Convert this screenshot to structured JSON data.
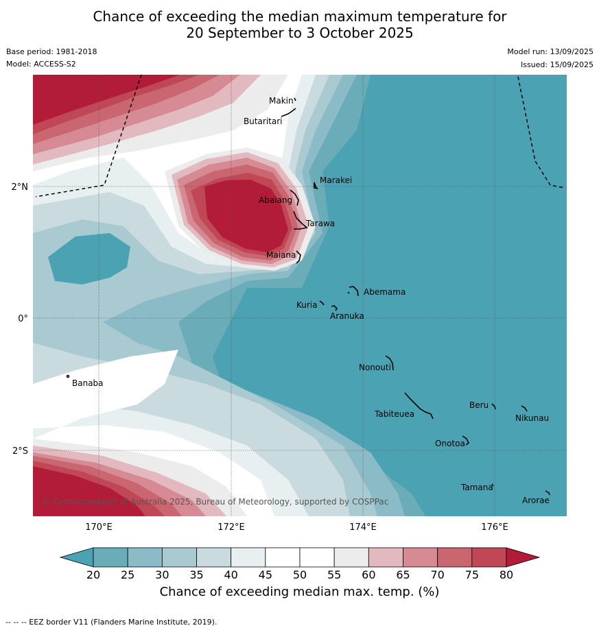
{
  "title_line1": "Chance of exceeding the median maximum temperature for",
  "title_line2": "20 September to 3 October 2025",
  "base_period": "Base period: 1981-2018",
  "model": "Model: ACCESS-S2",
  "model_run": "Model run: 13/09/2025",
  "issued": "Issued: 15/09/2025",
  "copyright": "© Commonwealth of Australia 2025, Bureau of Meteorology, supported by COSPPac",
  "lat_labels": [
    "2°N",
    "0°",
    "2°S"
  ],
  "lon_labels": [
    "170°E",
    "172°E",
    "174°E",
    "176°E"
  ],
  "places": {
    "makin": "Makin",
    "butaritari": "Butaritari",
    "marakei": "Marakei",
    "abaiang": "Abaiang",
    "tarawa": "Tarawa",
    "maiana": "Maiana",
    "abemama": "Abemama",
    "kuria": "Kuria",
    "aranuka": "Aranuka",
    "nonouti": "Nonouti",
    "banaba": "Banaba",
    "beru": "Beru",
    "nikunau": "Nikunau",
    "tabiteuea": "Tabiteuea",
    "onotoa": "Onotoa",
    "tamana": "Tamana",
    "arorae": "Arorae"
  },
  "colorbar": {
    "ticks": [
      "20",
      "25",
      "30",
      "35",
      "40",
      "45",
      "50",
      "55",
      "60",
      "65",
      "70",
      "75",
      "80"
    ],
    "colors": [
      "#6aadb9",
      "#8bbbc6",
      "#a9cad1",
      "#cadbe0",
      "#e8eff1",
      "#ffffff",
      "#ffffff",
      "#ececec",
      "#e3b9c0",
      "#d58a94",
      "#c9666f",
      "#bf4756"
    ],
    "under_color": "#4aa2b3",
    "over_color": "#b31c38",
    "label": "Chance of exceeding median max. temp. (%)"
  },
  "footer": "--  --  -- EEZ border V11 (Flanders Marine Institute, 2019)."
}
